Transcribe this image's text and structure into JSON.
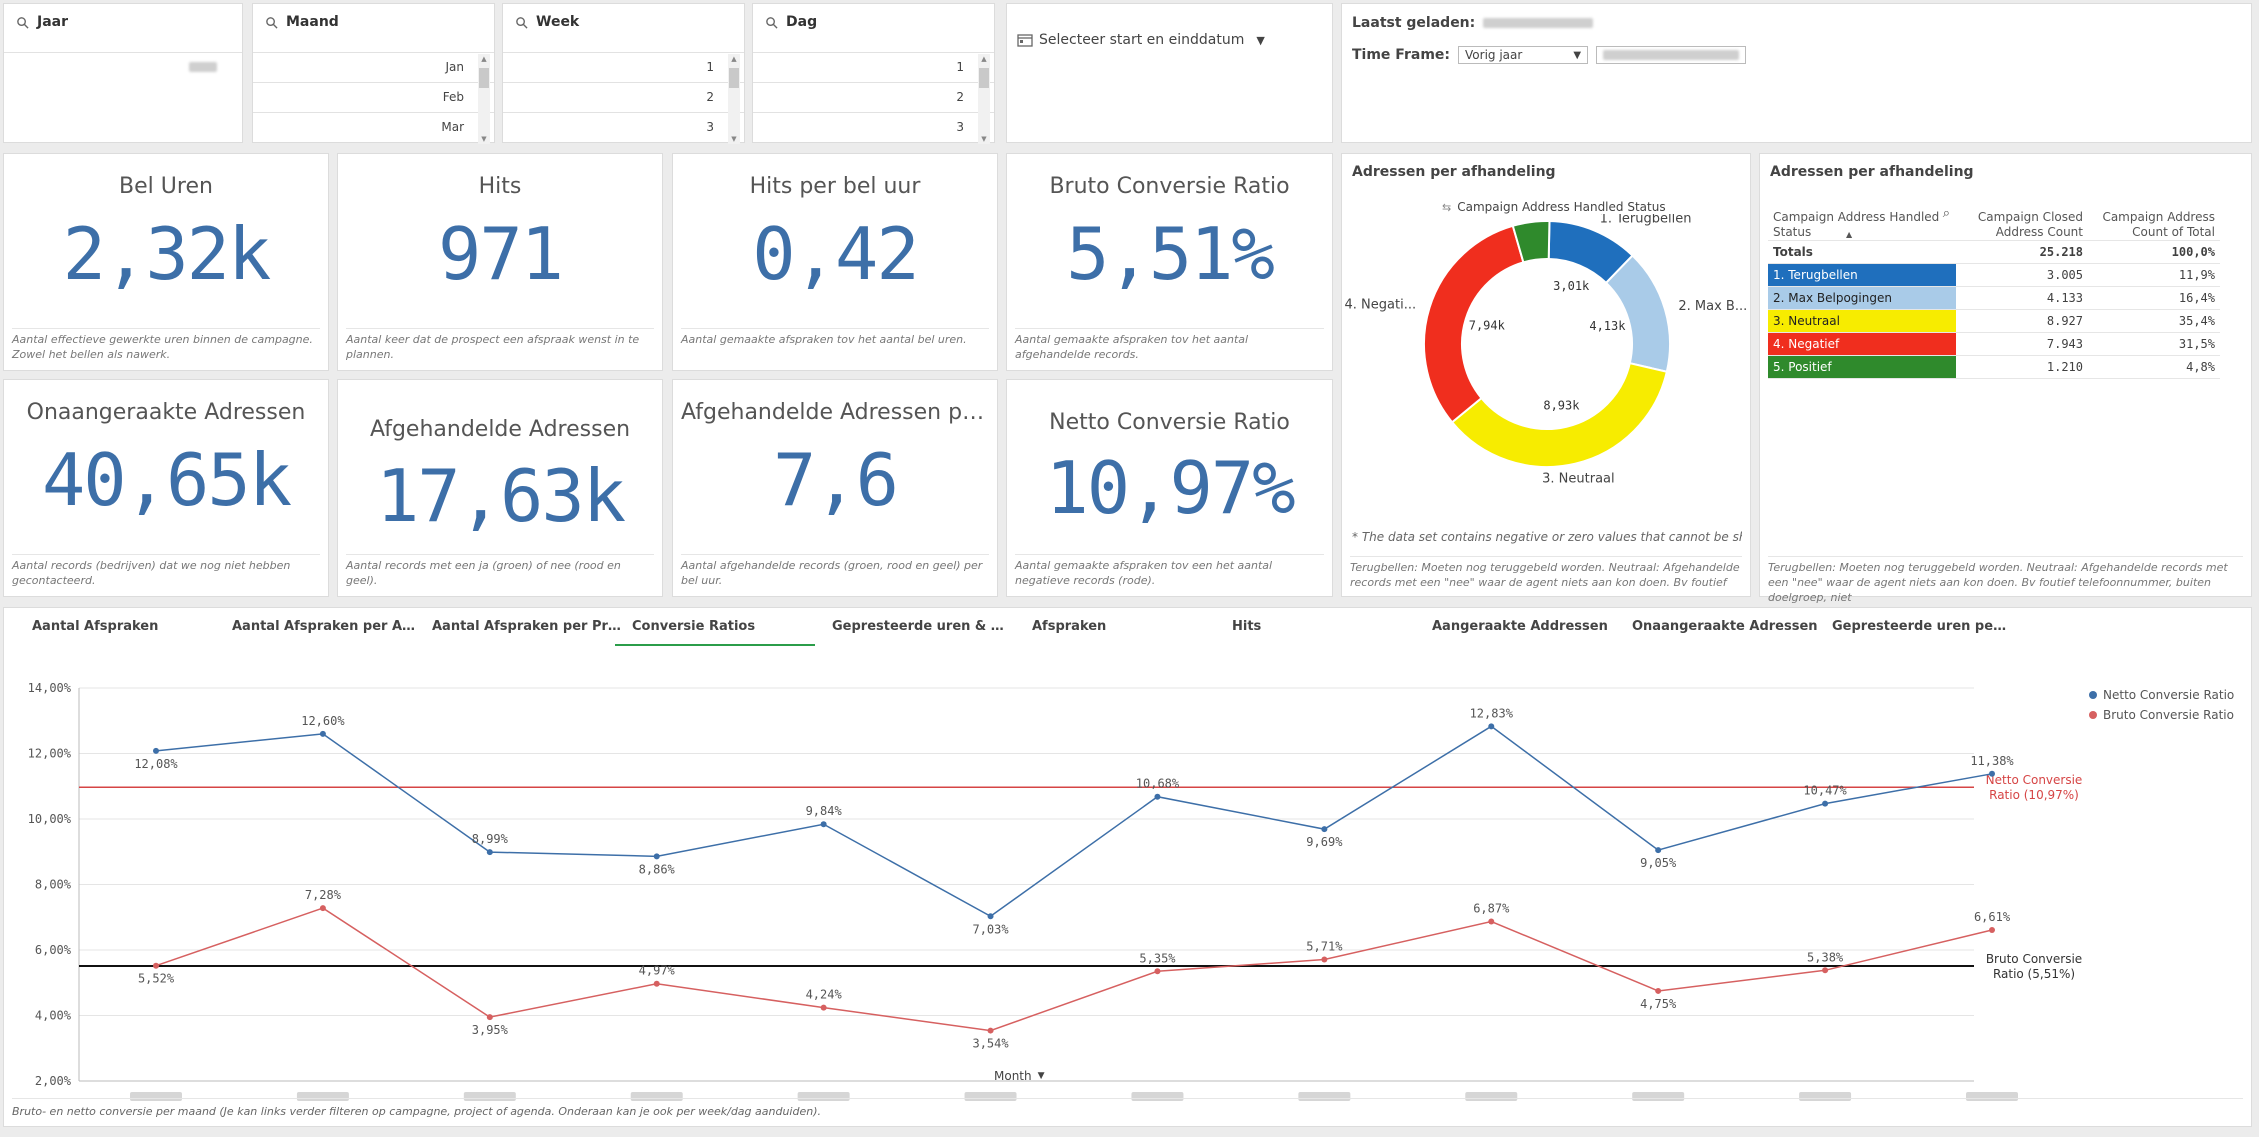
{
  "filters": {
    "jaar": {
      "title": "Jaar"
    },
    "maand": {
      "title": "Maand",
      "items": [
        "Jan",
        "Feb",
        "Mar"
      ]
    },
    "week": {
      "title": "Week",
      "items": [
        "1",
        "2",
        "3"
      ]
    },
    "dag": {
      "title": "Dag",
      "items": [
        "1",
        "2",
        "3"
      ]
    },
    "date_picker": {
      "label": "Selecteer start en einddatum"
    }
  },
  "info": {
    "last_loaded_label": "Laatst geladen:",
    "timeframe_label": "Time Frame:",
    "timeframe_value": "Vorig jaar"
  },
  "kpis": [
    {
      "title": "Bel Uren",
      "value": "2,32k",
      "desc": "Aantal effectieve gewerkte uren binnen de campagne. Zowel het bellen als nawerk."
    },
    {
      "title": "Hits",
      "value": "971",
      "desc": "Aantal keer dat de prospect een afspraak wenst in te plannen."
    },
    {
      "title": "Hits per bel uur",
      "value": "0,42",
      "desc": "Aantal gemaakte afspraken tov het aantal bel uren."
    },
    {
      "title": "Bruto Conversie Ratio",
      "value": "5,51%",
      "desc": "Aantal gemaakte afspraken tov het aantal afgehandelde records."
    },
    {
      "title": "Onaangeraakte Adressen",
      "value": "40,65k",
      "desc": "Aantal records (bedrijven) dat we nog niet hebben gecontacteerd."
    },
    {
      "title": "Afgehandelde Adressen",
      "value": "17,63k",
      "desc": "Aantal records met een ja (groen) of nee (rood en geel)."
    },
    {
      "title": "Afgehandelde Adressen per b...",
      "value": "7,6",
      "desc": "Aantal afgehandelde records (groen, rood en geel) per bel uur."
    },
    {
      "title": "Netto Conversie Ratio",
      "value": "10,97%",
      "desc": "Aantal gemaakte afspraken tov een het aantal negatieve records (rode)."
    }
  ],
  "donut": {
    "title": "Adressen per afhandeling",
    "legend_title": "Campaign Address Handled Status",
    "note": "* The data set contains negative or zero values that cannot be sho...",
    "desc": "Terugbellen: Moeten nog teruggebeld worden. Neutraal: Afgehandelde records met een \"nee\" waar de agent niets aan kon doen. Bv foutief",
    "slices": [
      {
        "label": "1. Terugbellen",
        "value": 3005,
        "display": "3,01k",
        "color": "#1f6fbd"
      },
      {
        "label": "2. Max B...",
        "value": 4133,
        "display": "4,13k",
        "color": "#a9cbe8"
      },
      {
        "label": "3. Neutraal",
        "value": 8927,
        "display": "8,93k",
        "color": "#f7ec00"
      },
      {
        "label": "4. Negati...",
        "value": 7943,
        "display": "7,94k",
        "color": "#f02e1e"
      },
      {
        "label": "5. Positief",
        "value": 1210,
        "display": "",
        "color": "#2f8a2c"
      }
    ]
  },
  "table": {
    "title": "Adressen per afhandeling",
    "headers": [
      "Campaign Address Handled Status",
      "Campaign Closed Address Count",
      "Campaign Address Count of Total"
    ],
    "totals": {
      "label": "Totals",
      "count": "25.218",
      "pct": "100,0%"
    },
    "rows": [
      {
        "label": "1. Terugbellen",
        "count": "3.005",
        "pct": "11,9%",
        "color": "#1f6fbd",
        "text": "#ffffff"
      },
      {
        "label": "2. Max Belpogingen",
        "count": "4.133",
        "pct": "16,4%",
        "color": "#a9cbe8",
        "text": "#222222"
      },
      {
        "label": "3. Neutraal",
        "count": "8.927",
        "pct": "35,4%",
        "color": "#f7ec00",
        "text": "#222222"
      },
      {
        "label": "4. Negatief",
        "count": "7.943",
        "pct": "31,5%",
        "color": "#f02e1e",
        "text": "#ffffff"
      },
      {
        "label": "5. Positief",
        "count": "1.210",
        "pct": "4,8%",
        "color": "#2f8a2c",
        "text": "#ffffff"
      }
    ],
    "desc": "Terugbellen: Moeten nog teruggebeld worden. Neutraal: Afgehandelde records met een \"nee\" waar de agent niets aan kon doen. Bv foutief telefoonnummer, buiten doelgroep, niet"
  },
  "tabs": [
    "Aantal Afspraken",
    "Aantal Afspraken per Agenda",
    "Aantal Afspraken per Project",
    "Conversie Ratios",
    "Gepresteerde uren & Hits p...",
    "Afspraken",
    "Hits",
    "Aangeraakte Addressen",
    "Onaangeraakte Adressen",
    "Gepresteerde uren per Proj..."
  ],
  "active_tab": 3,
  "chart_footer": "Bruto- en netto conversie per maand (Je kan links verder filteren op campagne, project of agenda. Onderaan kan je ook per week/dag aanduiden).",
  "x_dim_label": "Month",
  "chart_data": {
    "type": "line",
    "ylim": [
      2,
      14
    ],
    "yticks": [
      "2,00%",
      "4,00%",
      "6,00%",
      "8,00%",
      "10,00%",
      "12,00%",
      "14,00%"
    ],
    "series": [
      {
        "name": "Netto Conversie Ratio",
        "color": "#3d6fa8",
        "values": [
          12.08,
          12.6,
          8.99,
          8.86,
          9.84,
          7.03,
          10.68,
          9.69,
          12.83,
          9.05,
          10.47,
          11.38
        ],
        "labels": [
          "12,08%",
          "12,60%",
          "8,99%",
          "8,86%",
          "9,84%",
          "7,03%",
          "10,68%",
          "9,69%",
          "12,83%",
          "9,05%",
          "10,47%",
          "11,38%"
        ]
      },
      {
        "name": "Bruto Conversie Ratio",
        "color": "#d66060",
        "values": [
          5.52,
          7.28,
          3.95,
          4.97,
          4.24,
          3.54,
          5.35,
          5.71,
          6.87,
          4.75,
          5.38,
          6.61
        ],
        "labels": [
          "5,52%",
          "7,28%",
          "3,95%",
          "4,97%",
          "4,24%",
          "3,54%",
          "5,35%",
          "5,71%",
          "6,87%",
          "4,75%",
          "5,38%",
          "6,61%"
        ]
      }
    ],
    "reference_lines": [
      {
        "label": "Netto Conversie Ratio (10,97%)",
        "value": 10.97,
        "color": "#d64545"
      },
      {
        "label": "Bruto Conversie Ratio (5,51%)",
        "value": 5.51,
        "color": "#111111"
      }
    ],
    "grid": true,
    "legend": "top-right"
  }
}
